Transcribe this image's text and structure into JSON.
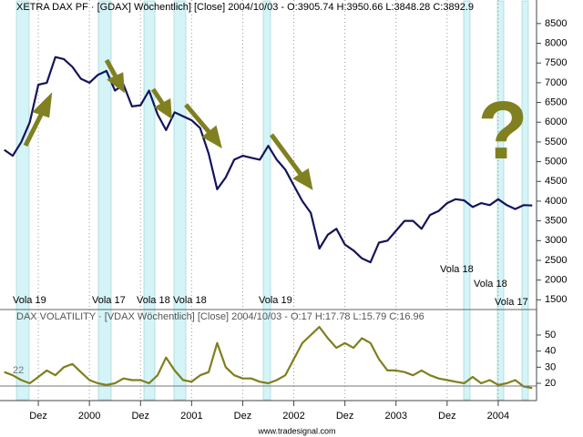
{
  "chart_data": [
    {
      "type": "line",
      "title": "XETRA DAX PF · [GDAX] Wöchentlich] [Close] 2004/10/03 - O:3905.74 H:3950.66 L:3848.28 C:3892.9",
      "series": [
        {
          "name": "XETRA DAX PF",
          "color": "#14145a",
          "values": [
            5300,
            5150,
            5500,
            6000,
            6950,
            7000,
            7650,
            7600,
            7400,
            7100,
            7000,
            7200,
            7300,
            6800,
            6950,
            6400,
            6430,
            6800,
            6200,
            5800,
            6250,
            6150,
            6050,
            5850,
            5200,
            4300,
            4600,
            5050,
            5150,
            5100,
            5050,
            5400,
            5050,
            4800,
            4400,
            4000,
            3700,
            2800,
            3150,
            3300,
            2900,
            2750,
            2550,
            2450,
            2950,
            3000,
            3250,
            3500,
            3500,
            3300,
            3650,
            3750,
            3950,
            4050,
            4020,
            3850,
            3950,
            3900,
            4050,
            3900,
            3800,
            3900,
            3890
          ]
        }
      ],
      "ylim": [
        1300,
        9050
      ],
      "yticks": [
        1500,
        2000,
        2500,
        3000,
        3500,
        4000,
        4500,
        5000,
        5500,
        6000,
        6500,
        7000,
        7500,
        8000,
        8500
      ],
      "grid": false,
      "annotations": [
        "Vola 19",
        "Vola 17",
        "Vola 18",
        "Vola 18",
        "Vola 19",
        "Vola 18",
        "Vola 18",
        "Vola 17",
        "?"
      ]
    },
    {
      "type": "line",
      "title": "DAX VOLATILITY · [VDAX Wöchentlich] [Close] 2004/10/03 - O:17 H:17.78 L:15.79 C:16.96",
      "categories": [
        null,
        null,
        null,
        null,
        "Dez",
        null,
        null,
        null,
        null,
        null,
        "2000",
        null,
        null,
        null,
        null,
        null,
        "Dez",
        null,
        null,
        null,
        null,
        null,
        "2001",
        null,
        null,
        null,
        null,
        null,
        "Dez",
        null,
        null,
        null,
        null,
        null,
        "2002",
        null,
        null,
        null,
        null,
        null,
        "Dez",
        null,
        null,
        null,
        null,
        null,
        "2003",
        null,
        null,
        null,
        null,
        null,
        "Dez",
        null,
        null,
        null,
        null,
        null,
        "2004",
        null,
        null,
        null,
        null
      ],
      "series": [
        {
          "name": "DAX VOLATILITY",
          "color": "#7f7f1e",
          "values": [
            27,
            25,
            22,
            20,
            24,
            28,
            25,
            30,
            32,
            27,
            22,
            20,
            19,
            20,
            23,
            22,
            22,
            20,
            25,
            36,
            28,
            22,
            21,
            25,
            27,
            45,
            30,
            25,
            23,
            23,
            21,
            20,
            22,
            25,
            35,
            45,
            50,
            55,
            48,
            42,
            45,
            42,
            48,
            45,
            35,
            28,
            28,
            27,
            25,
            28,
            25,
            23,
            22,
            21,
            20,
            24,
            20,
            22,
            19,
            20,
            22,
            18,
            17
          ]
        }
      ],
      "ylim": [
        10.4,
        64.7
      ],
      "yticks": [
        20,
        30,
        40,
        50
      ],
      "grid": false,
      "annotations": [
        "22"
      ]
    },
    {
      "type": "footer",
      "text": "www.tradesignal.com"
    }
  ]
}
